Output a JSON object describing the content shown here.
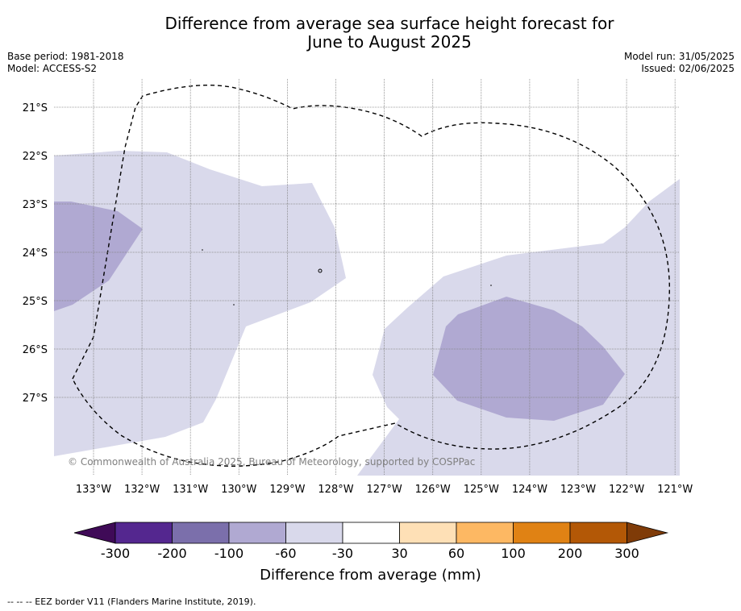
{
  "title": {
    "line1": "Difference from average sea surface height forecast for",
    "line2": "June to August 2025"
  },
  "meta": {
    "base_period": "Base period: 1981-2018",
    "model": "Model: ACCESS-S2",
    "model_run": "Model run: 31/05/2025",
    "issued": "Issued: 02/06/2025"
  },
  "map": {
    "lat_labels": [
      "21°S",
      "22°S",
      "23°S",
      "24°S",
      "25°S",
      "26°S",
      "27°S"
    ],
    "lon_labels": [
      "133°W",
      "132°W",
      "131°W",
      "130°W",
      "129°W",
      "128°W",
      "127°W",
      "126°W",
      "125°W",
      "124°W",
      "123°W",
      "122°W",
      "121°W"
    ],
    "copyright": "© Commonwealth of Australia 2025, Bureau of Meteorology, supported by COSPPac",
    "eez_line_color": "#000000"
  },
  "colorbar": {
    "colors": [
      "#3f0a57",
      "#54278f",
      "#7b6fab",
      "#b0a9d2",
      "#d9d9eb",
      "#ffffff",
      "#fee0b6",
      "#fdb863",
      "#e08214",
      "#b35806",
      "#7f3b08"
    ],
    "tick_labels": [
      "-300",
      "-200",
      "-100",
      "-60",
      "-30",
      "30",
      "60",
      "100",
      "200",
      "300"
    ],
    "label": "Difference from average (mm)"
  },
  "footnote": "--  --  -- EEZ border V11 (Flanders Marine Institute, 2019)."
}
